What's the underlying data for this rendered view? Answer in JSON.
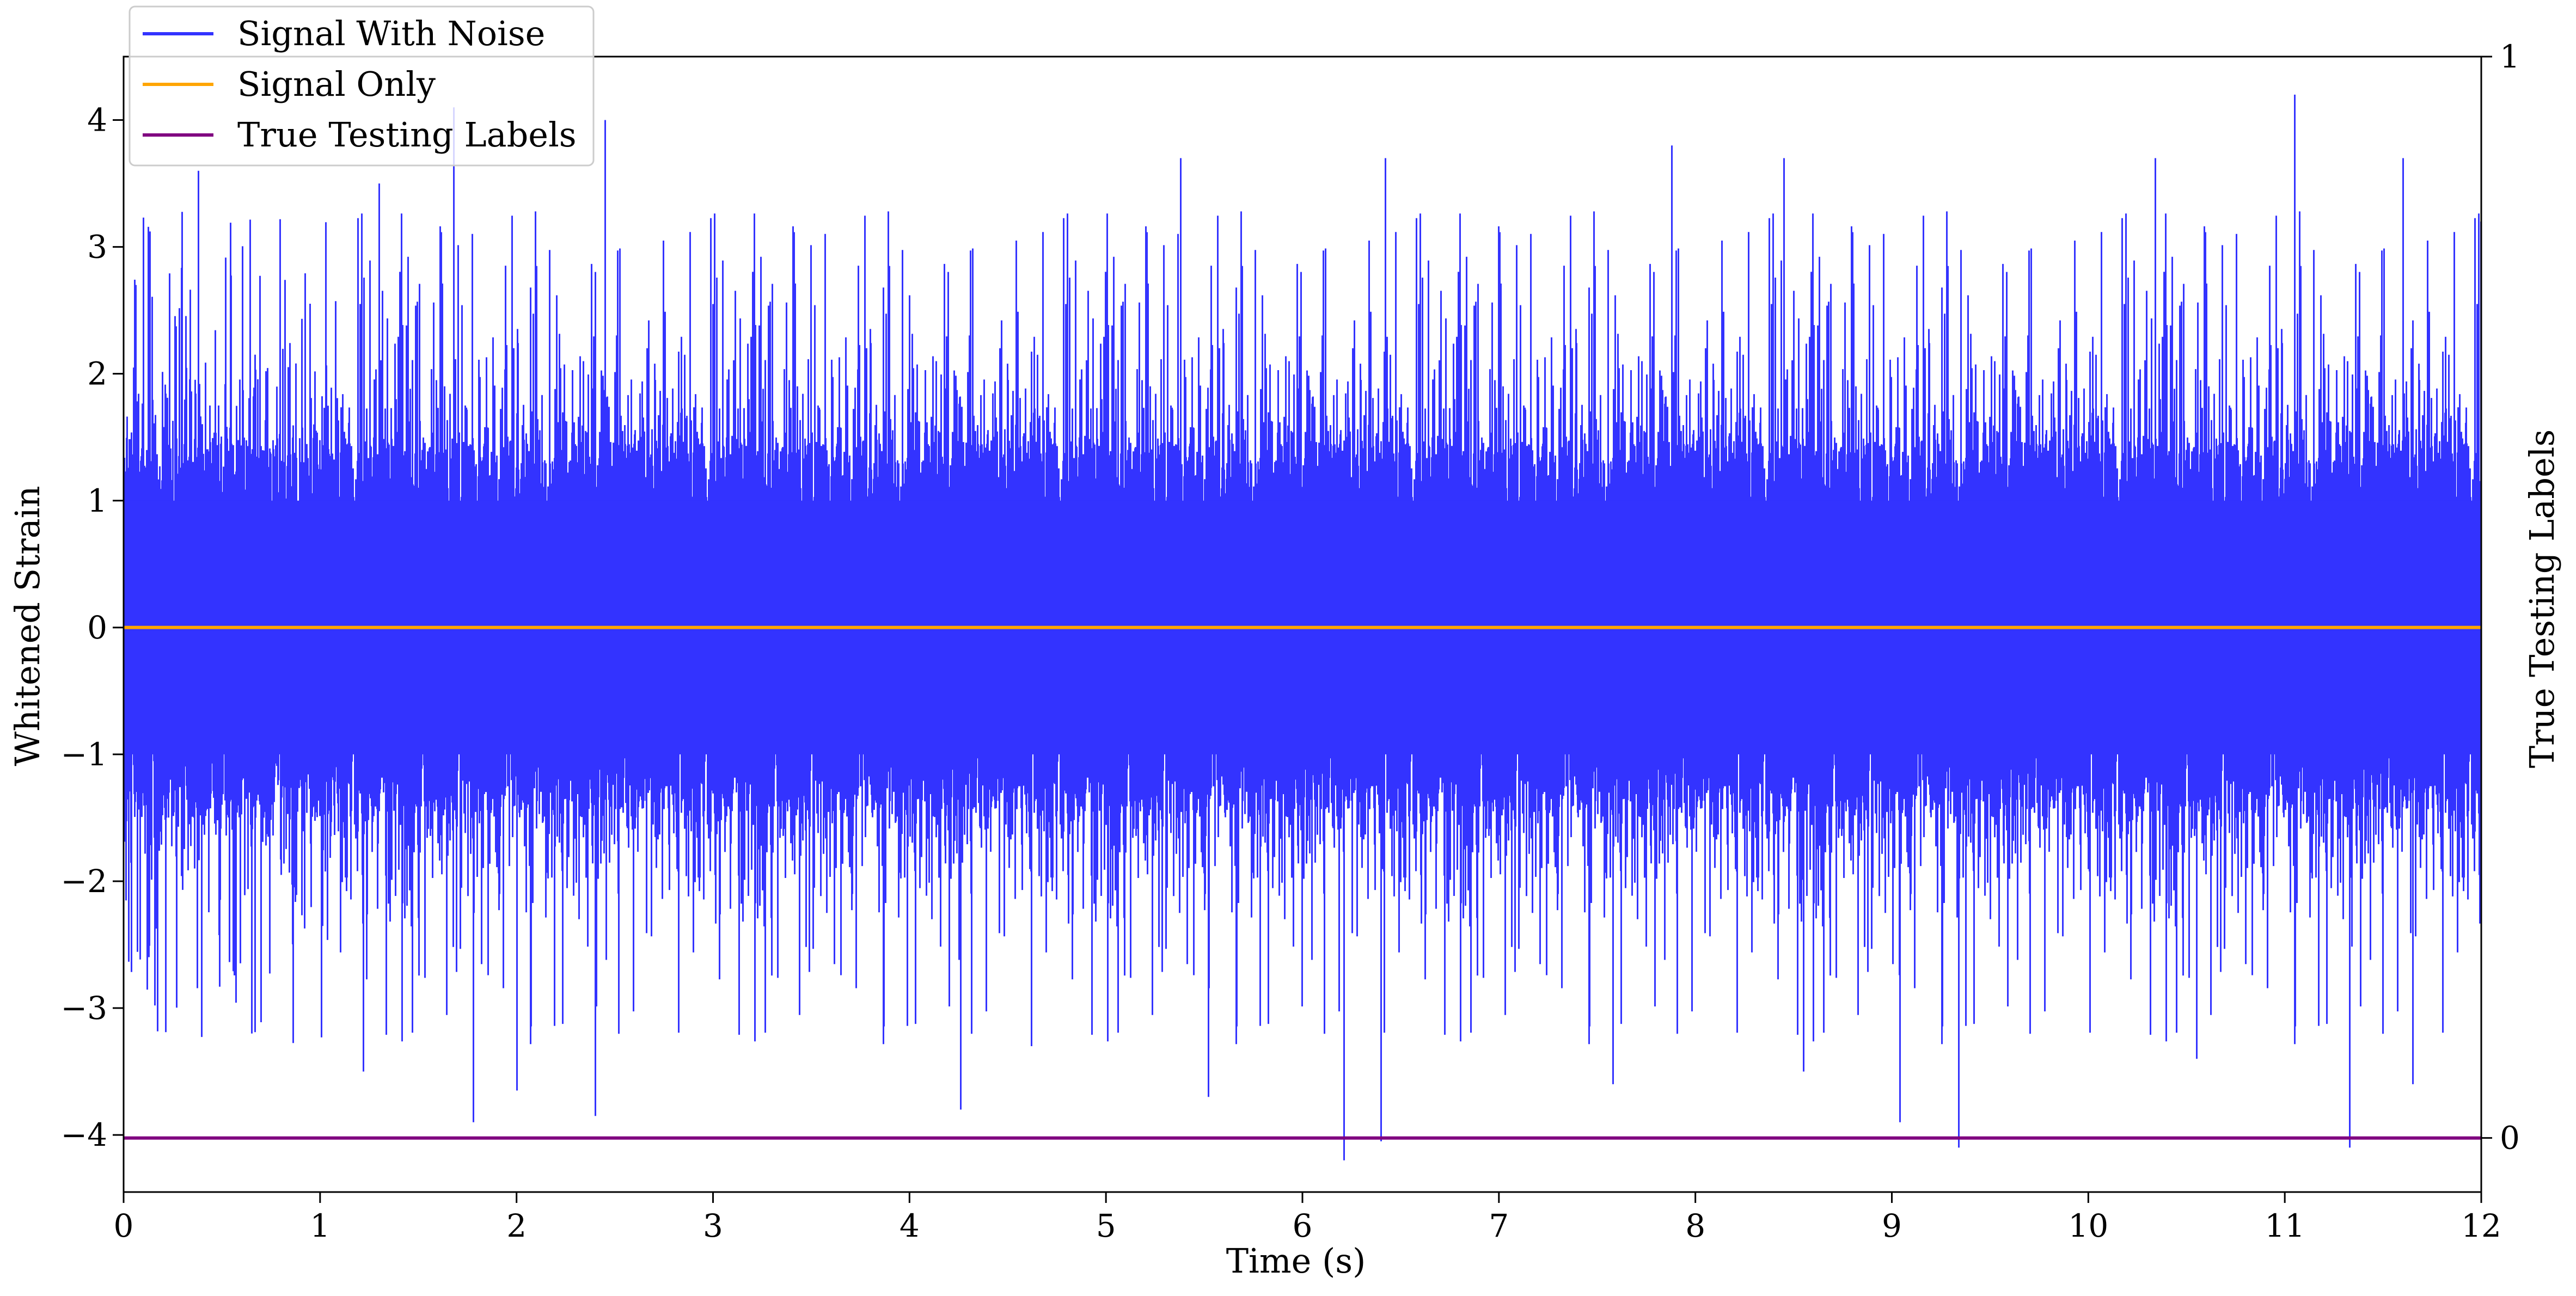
{
  "chart_data": {
    "type": "line",
    "xlabel": "Time (s)",
    "ylabel": "Whitened Strain",
    "ylabel_right": "True Testing Labels",
    "xlim": [
      0,
      12
    ],
    "ylim": [
      -4.45,
      4.5
    ],
    "ylim_right": [
      -0.05,
      1.0
    ],
    "x_ticks": [
      "0",
      "1",
      "2",
      "3",
      "4",
      "5",
      "6",
      "7",
      "8",
      "9",
      "10",
      "11",
      "12"
    ],
    "y_ticks": [
      {
        "value": 4,
        "label": "4"
      },
      {
        "value": 3,
        "label": "3"
      },
      {
        "value": 2,
        "label": "2"
      },
      {
        "value": 1,
        "label": "1"
      },
      {
        "value": 0,
        "label": "0"
      },
      {
        "value": -1,
        "label": "−1"
      },
      {
        "value": -2,
        "label": "−2"
      },
      {
        "value": -3,
        "label": "−3"
      },
      {
        "value": -4,
        "label": "−4"
      }
    ],
    "y_ticks_right": [
      {
        "value": 1,
        "label": "1"
      },
      {
        "value": 0,
        "label": "0"
      }
    ],
    "grid": false,
    "legend_position": "top-left",
    "series": [
      {
        "name": "Signal With Noise",
        "axis": "left",
        "color": "#3333ff",
        "kind": "noise",
        "sample_rate_hz": 4096,
        "peaks": [
          {
            "x": 1.68,
            "y": 4.1
          },
          {
            "x": 2.45,
            "y": 4.0
          },
          {
            "x": 11.05,
            "y": 4.2
          },
          {
            "x": 0.38,
            "y": 3.6
          },
          {
            "x": 1.3,
            "y": 3.5
          },
          {
            "x": 5.38,
            "y": 3.7
          },
          {
            "x": 5.38,
            "y": 3.7
          },
          {
            "x": 6.42,
            "y": 3.7
          },
          {
            "x": 7.88,
            "y": 3.8
          },
          {
            "x": 8.45,
            "y": 3.7
          },
          {
            "x": 10.34,
            "y": 3.7
          },
          {
            "x": 11.6,
            "y": 3.7
          },
          {
            "x": 12.0,
            "y": 3.2
          },
          {
            "x": 1.78,
            "y": -3.9
          },
          {
            "x": 2.4,
            "y": -3.85
          },
          {
            "x": 4.26,
            "y": -3.8
          },
          {
            "x": 6.21,
            "y": -4.2
          },
          {
            "x": 6.4,
            "y": -4.05
          },
          {
            "x": 9.04,
            "y": -3.9
          },
          {
            "x": 9.34,
            "y": -4.1
          },
          {
            "x": 11.33,
            "y": -4.1
          },
          {
            "x": 0.06,
            "y": 2.7
          },
          {
            "x": 0.65,
            "y": -3.2
          },
          {
            "x": 1.22,
            "y": -3.5
          },
          {
            "x": 2.0,
            "y": -3.65
          },
          {
            "x": 4.62,
            "y": -3.3
          },
          {
            "x": 5.52,
            "y": -3.7
          },
          {
            "x": 7.58,
            "y": -3.6
          },
          {
            "x": 8.55,
            "y": -3.5
          },
          {
            "x": 10.55,
            "y": -3.4
          },
          {
            "x": 11.65,
            "y": -3.6
          }
        ]
      },
      {
        "name": "Signal Only",
        "axis": "left",
        "color": "#ffa500",
        "kind": "line",
        "x": [
          0,
          12
        ],
        "y": [
          0,
          0
        ]
      },
      {
        "name": "True Testing Labels",
        "axis": "right",
        "color": "#800080",
        "kind": "line",
        "x": [
          0,
          12
        ],
        "y": [
          0,
          0
        ]
      }
    ]
  }
}
